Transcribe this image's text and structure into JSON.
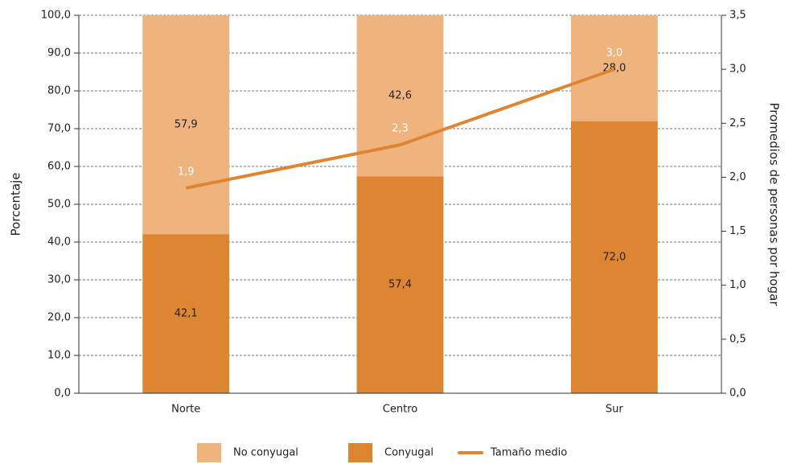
{
  "chart_data": {
    "type": "bar",
    "stacked": true,
    "categories": [
      "Norte",
      "Centro",
      "Sur"
    ],
    "series": [
      {
        "name": "No conyugal",
        "color": "#efb47e",
        "values": [
          57.9,
          42.6,
          28.0
        ],
        "value_labels": [
          "57,9",
          "42,6",
          "28,0"
        ]
      },
      {
        "name": "Conyugal",
        "color": "#dd8530",
        "values": [
          42.1,
          57.4,
          72.0
        ],
        "value_labels": [
          "42,1",
          "57,4",
          "72,0"
        ]
      },
      {
        "name": "Tamaño medio",
        "type": "line",
        "axis": "y2",
        "color": "#dd8530",
        "values": [
          1.9,
          2.3,
          3.0
        ],
        "value_labels": [
          "1,9",
          "2,3",
          "3,0"
        ]
      }
    ],
    "ylabel": "Porcentaje",
    "y2label": "Promedios de personas por hogar",
    "ylim": [
      0,
      100
    ],
    "yticks": [
      {
        "value": 0,
        "label": "0,0"
      },
      {
        "value": 10,
        "label": "10,0"
      },
      {
        "value": 20,
        "label": "20,0"
      },
      {
        "value": 30,
        "label": "30,0"
      },
      {
        "value": 40,
        "label": "40,0"
      },
      {
        "value": 50,
        "label": "50,0"
      },
      {
        "value": 60,
        "label": "60,0"
      },
      {
        "value": 70,
        "label": "70,0"
      },
      {
        "value": 80,
        "label": "80,0"
      },
      {
        "value": 90,
        "label": "90,0"
      },
      {
        "value": 100,
        "label": "100,0"
      }
    ],
    "y2lim": [
      0,
      3.5
    ],
    "y2ticks": [
      {
        "value": 0,
        "label": "0,0"
      },
      {
        "value": 0.5,
        "label": "0,5"
      },
      {
        "value": 1,
        "label": "1,0"
      },
      {
        "value": 1.5,
        "label": "1,5"
      },
      {
        "value": 2,
        "label": "2,0"
      },
      {
        "value": 2.5,
        "label": "2,5"
      },
      {
        "value": 3,
        "label": "3,0"
      },
      {
        "value": 3.5,
        "label": "3,5"
      }
    ],
    "grid": true,
    "legend": "bottom"
  }
}
